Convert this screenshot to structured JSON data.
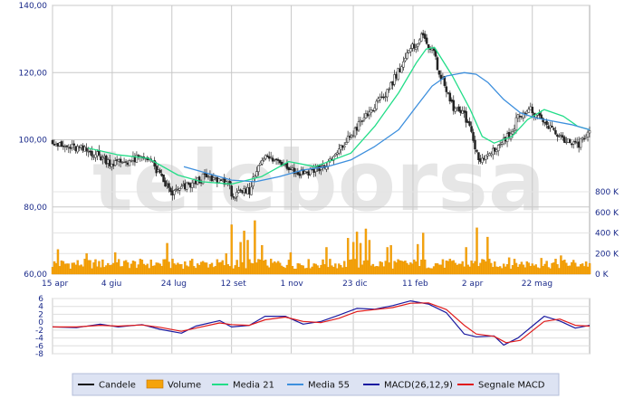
{
  "watermark": "teleborsa",
  "colors": {
    "candle_up": "#ffffff",
    "candle_down": "#222222",
    "candle_outline": "#222222",
    "volume": "#f5a30a",
    "volume_edge": "#e08a00",
    "media21": "#22dd88",
    "media55": "#3d8fdd",
    "macd": "#1a1aa0",
    "signal": "#e01a1a",
    "grid": "#c8c8c8",
    "frame": "#a8a8a8",
    "watermark": "#e6e6e6",
    "legend_bg": "#dde3f3",
    "legend_border": "#b3bed9",
    "tick": "#1a2a8a"
  },
  "chart_data": [
    {
      "type": "candlestick",
      "title": "",
      "x_tick_labels": [
        "15 apr",
        "4 giu",
        "24 lug",
        "12 set",
        "1 nov",
        "23 dic",
        "11 feb",
        "2 apr",
        "22 mag"
      ],
      "x_tick_days": [
        0,
        50,
        100,
        150,
        200,
        252,
        302,
        352,
        402
      ],
      "x_range_days": [
        0,
        450
      ],
      "y_ticks": [
        60,
        80,
        100,
        120,
        140
      ],
      "y_tick_labels": [
        "60,00",
        "80,00",
        "100,00",
        "120,00",
        "140,00"
      ],
      "ylim": [
        60,
        140
      ],
      "grid": true,
      "price_path": [
        [
          0,
          100
        ],
        [
          6,
          98
        ],
        [
          20,
          97.5
        ],
        [
          35,
          96
        ],
        [
          50,
          93
        ],
        [
          68,
          94
        ],
        [
          80,
          95
        ],
        [
          92,
          88
        ],
        [
          100,
          84
        ],
        [
          112,
          86
        ],
        [
          128,
          89
        ],
        [
          135,
          88
        ],
        [
          145,
          88
        ],
        [
          152,
          83
        ],
        [
          165,
          85
        ],
        [
          175,
          95
        ],
        [
          195,
          93
        ],
        [
          205,
          90
        ],
        [
          220,
          91
        ],
        [
          232,
          93
        ],
        [
          245,
          99
        ],
        [
          260,
          106
        ],
        [
          278,
          113
        ],
        [
          295,
          124
        ],
        [
          303,
          128
        ],
        [
          310,
          131
        ],
        [
          318,
          127
        ],
        [
          325,
          119
        ],
        [
          335,
          110
        ],
        [
          345,
          107
        ],
        [
          352,
          101
        ],
        [
          358,
          93
        ],
        [
          366,
          96
        ],
        [
          382,
          101
        ],
        [
          392,
          108
        ],
        [
          400,
          109
        ],
        [
          408,
          106
        ],
        [
          418,
          103
        ],
        [
          430,
          100
        ],
        [
          438,
          98
        ],
        [
          450,
          102
        ]
      ],
      "overlays": [
        {
          "name": "Media 21",
          "path": [
            [
              30,
              97.5
            ],
            [
              55,
              95.5
            ],
            [
              80,
              94.5
            ],
            [
              105,
              89.5
            ],
            [
              125,
              87.5
            ],
            [
              150,
              86.8
            ],
            [
              175,
              89
            ],
            [
              198,
              93.5
            ],
            [
              220,
              92
            ],
            [
              250,
              96
            ],
            [
              270,
              104
            ],
            [
              290,
              114
            ],
            [
              305,
              123
            ],
            [
              313,
              127
            ],
            [
              320,
              127.5
            ],
            [
              335,
              119
            ],
            [
              350,
              109
            ],
            [
              360,
              101
            ],
            [
              370,
              99
            ],
            [
              385,
              101
            ],
            [
              398,
              106
            ],
            [
              412,
              109
            ],
            [
              428,
              107
            ],
            [
              440,
              104
            ],
            [
              450,
              103
            ]
          ]
        },
        {
          "name": "Media 55",
          "path": [
            [
              110,
              92
            ],
            [
              130,
              90
            ],
            [
              150,
              88
            ],
            [
              170,
              87.5
            ],
            [
              190,
              89
            ],
            [
              210,
              91
            ],
            [
              230,
              92
            ],
            [
              250,
              94
            ],
            [
              270,
              98
            ],
            [
              290,
              103
            ],
            [
              305,
              110
            ],
            [
              318,
              116
            ],
            [
              330,
              119
            ],
            [
              345,
              120
            ],
            [
              355,
              119.5
            ],
            [
              365,
              117
            ],
            [
              378,
              112
            ],
            [
              392,
              108
            ],
            [
              405,
              106.5
            ],
            [
              420,
              105.5
            ],
            [
              435,
              104.5
            ],
            [
              450,
              103
            ]
          ]
        }
      ]
    },
    {
      "type": "bar",
      "name": "Volume",
      "y_ticks": [
        0,
        200,
        400,
        600,
        800
      ],
      "y_tick_labels": [
        "0 K",
        "200 K",
        "400 K",
        "600 K",
        "800 K"
      ],
      "ylim": [
        0,
        800
      ],
      "typical_level": 110,
      "spikes": [
        [
          4,
          240
        ],
        [
          28,
          200
        ],
        [
          52,
          210
        ],
        [
          96,
          300
        ],
        [
          145,
          200
        ],
        [
          150,
          480
        ],
        [
          158,
          310
        ],
        [
          160,
          420
        ],
        [
          164,
          330
        ],
        [
          170,
          520
        ],
        [
          175,
          280
        ],
        [
          200,
          210
        ],
        [
          230,
          260
        ],
        [
          248,
          350
        ],
        [
          252,
          310
        ],
        [
          255,
          410
        ],
        [
          258,
          300
        ],
        [
          262,
          440
        ],
        [
          266,
          330
        ],
        [
          280,
          260
        ],
        [
          284,
          280
        ],
        [
          306,
          290
        ],
        [
          310,
          400
        ],
        [
          346,
          260
        ],
        [
          356,
          450
        ],
        [
          364,
          360
        ],
        [
          383,
          160
        ],
        [
          410,
          155
        ],
        [
          426,
          180
        ]
      ]
    },
    {
      "type": "line",
      "name": "MACD",
      "y_ticks": [
        6,
        4,
        2,
        0,
        -2,
        -4,
        -6,
        -8
      ],
      "y_tick_labels": [
        "6",
        "4",
        "2",
        "0",
        "-2",
        "-4",
        "-6",
        "-8"
      ],
      "ylim": [
        -8,
        6
      ],
      "series": [
        {
          "name": "MACD(26,12,9)",
          "path": [
            [
              0,
              -1.2
            ],
            [
              20,
              -1.4
            ],
            [
              40,
              -0.5
            ],
            [
              55,
              -1.2
            ],
            [
              75,
              -0.6
            ],
            [
              90,
              -1.8
            ],
            [
              108,
              -2.8
            ],
            [
              120,
              -1.0
            ],
            [
              140,
              0.4
            ],
            [
              150,
              -1.2
            ],
            [
              165,
              -0.8
            ],
            [
              178,
              1.5
            ],
            [
              195,
              1.5
            ],
            [
              210,
              -0.5
            ],
            [
              225,
              0.2
            ],
            [
              240,
              1.8
            ],
            [
              255,
              3.5
            ],
            [
              270,
              3.3
            ],
            [
              285,
              4.2
            ],
            [
              300,
              5.4
            ],
            [
              315,
              4.6
            ],
            [
              330,
              2.4
            ],
            [
              345,
              -3.0
            ],
            [
              355,
              -3.7
            ],
            [
              370,
              -3.5
            ],
            [
              378,
              -5.8
            ],
            [
              390,
              -4.0
            ],
            [
              402,
              -1.0
            ],
            [
              412,
              1.5
            ],
            [
              425,
              0.3
            ],
            [
              438,
              -1.5
            ],
            [
              450,
              -0.8
            ]
          ]
        },
        {
          "name": "Segnale MACD",
          "path": [
            [
              0,
              -1.2
            ],
            [
              20,
              -1.2
            ],
            [
              40,
              -0.8
            ],
            [
              55,
              -1.0
            ],
            [
              75,
              -0.7
            ],
            [
              90,
              -1.3
            ],
            [
              108,
              -2.3
            ],
            [
              120,
              -1.5
            ],
            [
              140,
              -0.2
            ],
            [
              150,
              -0.6
            ],
            [
              165,
              -0.8
            ],
            [
              178,
              0.6
            ],
            [
              195,
              1.3
            ],
            [
              210,
              0.2
            ],
            [
              225,
              -0.1
            ],
            [
              240,
              1.0
            ],
            [
              255,
              2.7
            ],
            [
              270,
              3.2
            ],
            [
              285,
              3.7
            ],
            [
              300,
              4.8
            ],
            [
              315,
              4.9
            ],
            [
              330,
              3.2
            ],
            [
              345,
              -0.8
            ],
            [
              355,
              -3.0
            ],
            [
              370,
              -3.6
            ],
            [
              380,
              -5.2
            ],
            [
              392,
              -4.6
            ],
            [
              402,
              -2.2
            ],
            [
              412,
              0.2
            ],
            [
              425,
              0.8
            ],
            [
              438,
              -0.8
            ],
            [
              450,
              -1.0
            ]
          ]
        }
      ]
    }
  ],
  "legend": [
    {
      "label": "Candele",
      "kind": "line",
      "color": "#111111"
    },
    {
      "label": "Volume",
      "kind": "box",
      "color": "#f5a30a"
    },
    {
      "label": "Media 21",
      "kind": "line",
      "color": "#22dd88"
    },
    {
      "label": "Media 55",
      "kind": "line",
      "color": "#3d8fdd"
    },
    {
      "label": "MACD(26,12,9)",
      "kind": "line",
      "color": "#1a1aa0"
    },
    {
      "label": "Segnale MACD",
      "kind": "line",
      "color": "#e01a1a"
    }
  ]
}
